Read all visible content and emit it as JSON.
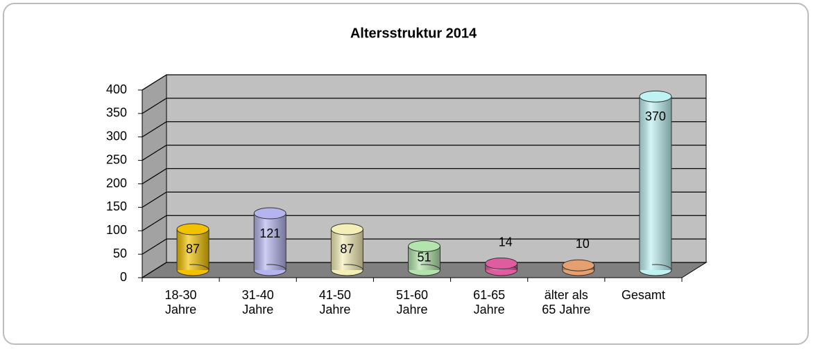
{
  "chart_data": {
    "type": "bar3d-cylinder",
    "title": "Altersstruktur 2014",
    "categories": [
      "18-30 Jahre",
      "31-40 Jahre",
      "41-50 Jahre",
      "51-60 Jahre",
      "61-65 Jahre",
      "älter als 65 Jahre",
      "Gesamt"
    ],
    "values": [
      87,
      121,
      87,
      51,
      14,
      10,
      370
    ],
    "colors": [
      "#f2c200",
      "#b4b4ee",
      "#f4efb6",
      "#b2e4ab",
      "#e05ca0",
      "#e6a070",
      "#bff2f2"
    ],
    "ylim": [
      0,
      400
    ],
    "yticks": [
      0,
      50,
      100,
      150,
      200,
      250,
      300,
      350,
      400
    ],
    "grid": true
  }
}
